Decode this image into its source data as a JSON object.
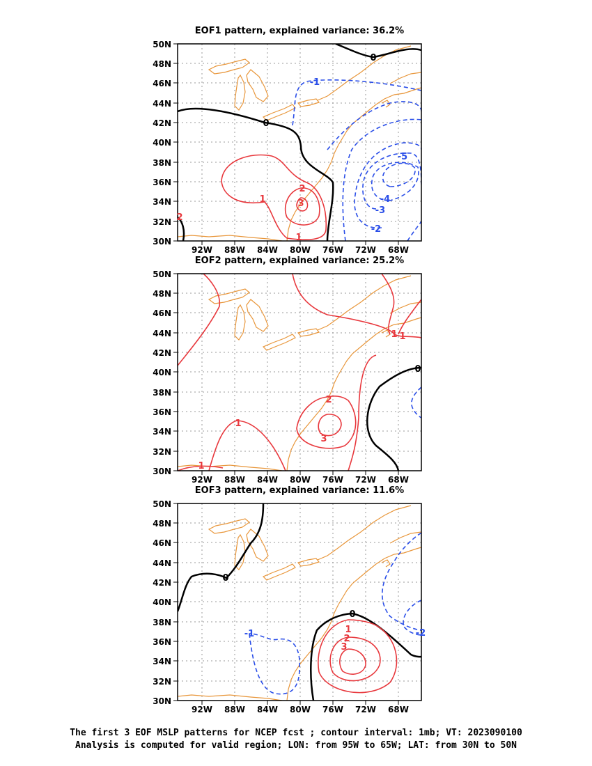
{
  "panels": [
    {
      "title": "EOF1 pattern, explained variance: 36.2%",
      "contour_labels": [
        {
          "text": "0",
          "color": "#000000"
        },
        {
          "text": "0",
          "color": "#000000"
        },
        {
          "text": "1",
          "color": "#e8383d"
        },
        {
          "text": "2",
          "color": "#e8383d"
        },
        {
          "text": "3",
          "color": "#e8383d"
        },
        {
          "text": "1",
          "color": "#e8383d"
        },
        {
          "text": "-1",
          "color": "#2a4ee8"
        },
        {
          "text": "-2",
          "color": "#2a4ee8"
        },
        {
          "text": "-3",
          "color": "#2a4ee8"
        },
        {
          "text": "-4",
          "color": "#2a4ee8"
        },
        {
          "text": "-5",
          "color": "#2a4ee8"
        },
        {
          "text": "2",
          "color": "#e8383d"
        }
      ]
    },
    {
      "title": "EOF2 pattern, explained variance: 25.2%",
      "contour_labels": [
        {
          "text": "1",
          "color": "#e8383d"
        },
        {
          "text": "1",
          "color": "#e8383d"
        },
        {
          "text": "1",
          "color": "#e8383d"
        },
        {
          "text": "1",
          "color": "#e8383d"
        },
        {
          "text": "2",
          "color": "#e8383d"
        },
        {
          "text": "3",
          "color": "#e8383d"
        },
        {
          "text": "0",
          "color": "#000000"
        }
      ]
    },
    {
      "title": "EOF3 pattern, explained variance: 11.6%",
      "contour_labels": [
        {
          "text": "0",
          "color": "#000000"
        },
        {
          "text": "0",
          "color": "#000000"
        },
        {
          "text": "-1",
          "color": "#2a4ee8"
        },
        {
          "text": "1",
          "color": "#e8383d"
        },
        {
          "text": "2",
          "color": "#e8383d"
        },
        {
          "text": "3",
          "color": "#e8383d"
        },
        {
          "text": "-2",
          "color": "#2a4ee8"
        }
      ]
    }
  ],
  "lat_ticks": [
    "50N",
    "48N",
    "46N",
    "44N",
    "42N",
    "40N",
    "38N",
    "36N",
    "34N",
    "32N",
    "30N"
  ],
  "lon_ticks": [
    "92W",
    "88W",
    "84W",
    "80W",
    "76W",
    "72W",
    "68W"
  ],
  "caption": [
    "The first 3 EOF MSLP patterns for NCEP fcst ; contour interval: 1mb; VT: 2023090100",
    "Analysis is computed for valid region; LON: from 95W to 65W; LAT: from 30N to 50N"
  ],
  "colors": {
    "positive": "#e8383d",
    "negative": "#2a4ee8",
    "zero": "#000000",
    "coast": "#e8963a",
    "grid": "#9a9a9a"
  }
}
